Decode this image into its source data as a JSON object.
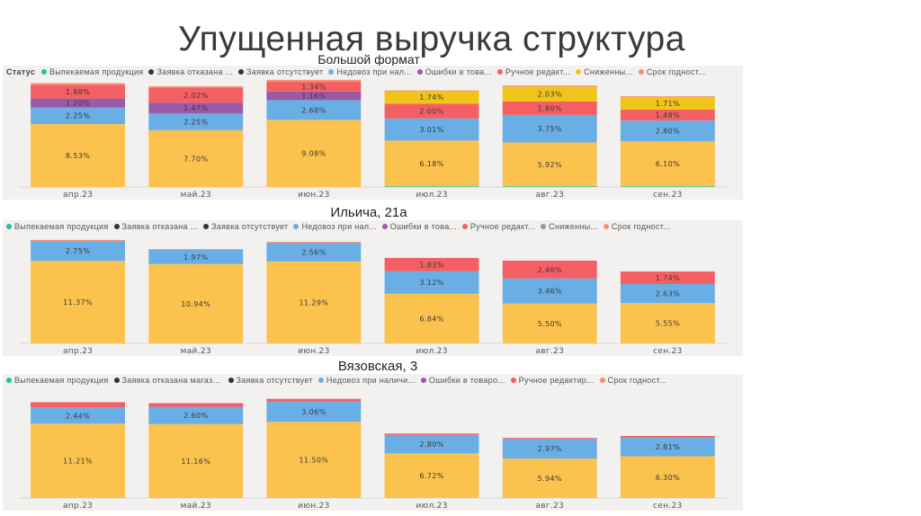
{
  "slide": {
    "title": "Упущенная выручка структура"
  },
  "colors": {
    "Выпекаемая продукция": "#1fbfa6",
    "Заявка отказана": "#333333",
    "Заявка отсутствует": "#fcc24e",
    "Недовоз при наличии": "#6aaee6",
    "Ошибки в товаре": "#9b5aa6",
    "Ручное редактирование": "#f45f63",
    "Сниженные": "#f0c419",
    "Срок годности": "#f6906a"
  },
  "chart_data": [
    {
      "type": "bar",
      "stacked": true,
      "title": "Большой формат",
      "legend_title": "Статус",
      "legend_labels": [
        "Выпекаемая продукция",
        "Заявка отказана ...",
        "Заявка отсутствует",
        "Недовоз при нал...",
        "Ошибки в това...",
        "Ручное редакт...",
        "Сниженны...",
        "Срок годност..."
      ],
      "categories": [
        "апр.23",
        "май.23",
        "июн.23",
        "июл.23",
        "авг.23",
        "сен.23"
      ],
      "ylim": [
        0,
        14
      ],
      "series": [
        {
          "name": "Выпекаемая продукция",
          "values": [
            0,
            0,
            0,
            0.1,
            0.1,
            0.1
          ],
          "labels": [
            "",
            "",
            "",
            "",
            "",
            ""
          ]
        },
        {
          "name": "Заявка отказана",
          "values": [
            0,
            0,
            0,
            0,
            0,
            0
          ],
          "labels": [
            "",
            "",
            "",
            "",
            "",
            ""
          ]
        },
        {
          "name": "Заявка отсутствует",
          "values": [
            8.53,
            7.7,
            9.08,
            6.18,
            5.92,
            6.1
          ],
          "labels": [
            "8.53%",
            "7.70%",
            "9.08%",
            "6.18%",
            "5.92%",
            "6.10%"
          ]
        },
        {
          "name": "Недовоз при наличии",
          "values": [
            2.25,
            2.25,
            2.68,
            3.01,
            3.75,
            2.8
          ],
          "labels": [
            "2.25%",
            "2.25%",
            "2.68%",
            "3.01%",
            "3.75%",
            "2.80%"
          ]
        },
        {
          "name": "Ошибки в товаре",
          "values": [
            1.2,
            1.47,
            1.16,
            0,
            0,
            0
          ],
          "labels": [
            "1.20%",
            "1.47%",
            "1.16%",
            "",
            "",
            ""
          ]
        },
        {
          "name": "Ручное редактирование",
          "values": [
            1.88,
            2.02,
            1.34,
            2.0,
            1.8,
            1.48
          ],
          "labels": [
            "1.88%",
            "2.02%",
            "1.34%",
            "2.00%",
            "1.80%",
            "1.48%"
          ]
        },
        {
          "name": "Сниженные",
          "values": [
            0,
            0,
            0,
            1.74,
            2.03,
            1.71
          ],
          "labels": [
            "",
            "",
            "",
            "1.74%",
            "2.03%",
            "1.71%"
          ]
        },
        {
          "name": "Срок годности",
          "values": [
            0.2,
            0.2,
            0.25,
            0.05,
            0.15,
            0.1
          ],
          "labels": [
            "",
            "",
            "",
            "",
            "",
            ""
          ]
        }
      ]
    },
    {
      "type": "bar",
      "stacked": true,
      "title": "Ильича, 21а",
      "legend_title": "",
      "legend_labels": [
        "Выпекаемая продукция",
        "Заявка отказана ...",
        "Заявка отсутствует",
        "Недовоз при нал...",
        "Ошибки в това...",
        "Ручное редакт...",
        "Снижeнны...",
        "Срок годност..."
      ],
      "categories": [
        "апр.23",
        "май.23",
        "июн.23",
        "июл.23",
        "авг.23",
        "сен.23"
      ],
      "ylim": [
        0,
        14.5
      ],
      "series": [
        {
          "name": "Выпекаемая продукция",
          "values": [
            0,
            0,
            0,
            0,
            0,
            0
          ],
          "labels": [
            "",
            "",
            "",
            "",
            "",
            ""
          ]
        },
        {
          "name": "Заявка отказана",
          "values": [
            0,
            0,
            0,
            0,
            0,
            0
          ],
          "labels": [
            "",
            "",
            "",
            "",
            "",
            ""
          ]
        },
        {
          "name": "Заявка отсутствует",
          "values": [
            11.37,
            10.94,
            11.29,
            6.84,
            5.5,
            5.55
          ],
          "labels": [
            "11.37%",
            "10.94%",
            "11.29%",
            "6.84%",
            "5.50%",
            "5.55%"
          ]
        },
        {
          "name": "Недовоз при наличии",
          "values": [
            2.75,
            1.97,
            2.56,
            3.12,
            3.46,
            2.63
          ],
          "labels": [
            "2.75%",
            "1.97%",
            "2.56%",
            "3.12%",
            "3.46%",
            "2.63%"
          ]
        },
        {
          "name": "Ошибки в товаре",
          "values": [
            0,
            0,
            0,
            0,
            0,
            0
          ],
          "labels": [
            "",
            "",
            "",
            "",
            "",
            ""
          ]
        },
        {
          "name": "Ручное редактирование",
          "values": [
            0,
            0,
            0,
            1.83,
            2.46,
            1.74
          ],
          "labels": [
            "",
            "",
            "",
            "1.83%",
            "2.46%",
            "1.74%"
          ]
        },
        {
          "name": "Сниженные",
          "values": [
            0,
            0,
            0,
            0,
            0,
            0
          ],
          "labels": [
            "",
            "",
            "",
            "",
            "",
            ""
          ]
        },
        {
          "name": "Срок годности",
          "values": [
            0.15,
            0.1,
            0.15,
            0,
            0,
            0
          ],
          "labels": [
            "",
            "",
            "",
            "",
            "",
            ""
          ]
        }
      ]
    },
    {
      "type": "bar",
      "stacked": true,
      "title": "Вязовская, 3",
      "legend_title": "",
      "legend_labels": [
        "Выпекаемая продукция",
        "Заявка отказана магази...",
        "Заявка отсутствует",
        "Недовоз при наличи...",
        "Ошибки в товаро...",
        "Ручное редактир...",
        "Срок годност..."
      ],
      "categories": [
        "апр.23",
        "май.23",
        "июн.23",
        "июл.23",
        "авг.23",
        "сен.23"
      ],
      "ylim": [
        0,
        16
      ],
      "series": [
        {
          "name": "Выпекаемая продукция",
          "values": [
            0,
            0,
            0,
            0,
            0,
            0
          ],
          "labels": [
            "",
            "",
            "",
            "",
            "",
            ""
          ]
        },
        {
          "name": "Заявка отказана",
          "values": [
            0,
            0,
            0,
            0,
            0,
            0
          ],
          "labels": [
            "",
            "",
            "",
            "",
            "",
            ""
          ]
        },
        {
          "name": "Заявка отсутствует",
          "values": [
            11.21,
            11.16,
            11.5,
            6.72,
            5.94,
            6.3
          ],
          "labels": [
            "11.21%",
            "11.16%",
            "11.50%",
            "6.72%",
            "5.94%",
            "6.30%"
          ]
        },
        {
          "name": "Недовоз при наличии",
          "values": [
            2.44,
            2.6,
            3.06,
            2.8,
            2.97,
            2.81
          ],
          "labels": [
            "2.44%",
            "2.60%",
            "3.06%",
            "2.80%",
            "2.97%",
            "2.81%"
          ]
        },
        {
          "name": "Ошибки в товаре",
          "values": [
            0,
            0,
            0,
            0,
            0,
            0
          ],
          "labels": [
            "",
            "",
            "",
            "",
            "",
            ""
          ]
        },
        {
          "name": "Ручное редактирование",
          "values": [
            0.8,
            0.55,
            0.4,
            0.2,
            0.15,
            0.25
          ],
          "labels": [
            "",
            "",
            "",
            "",
            "",
            ""
          ]
        },
        {
          "name": "Срок годности",
          "values": [
            0,
            0,
            0,
            0,
            0,
            0
          ],
          "labels": [
            "",
            "",
            "",
            "",
            "",
            ""
          ]
        }
      ]
    }
  ]
}
